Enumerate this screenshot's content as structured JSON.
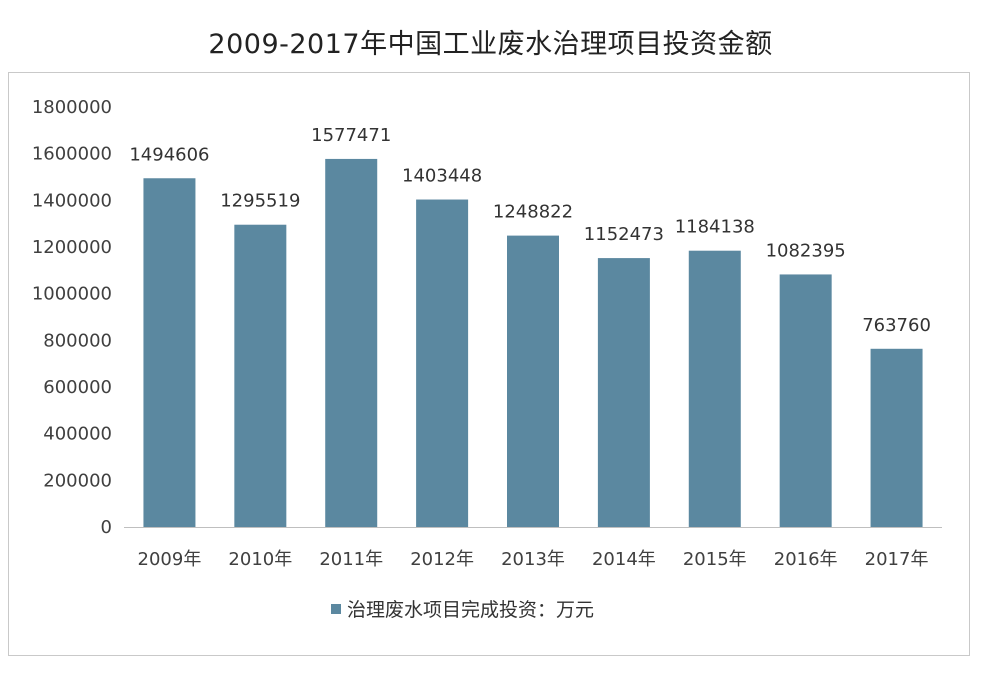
{
  "chart_data": {
    "type": "bar",
    "title": "2009-2017年中国工业废水治理项目投资金额",
    "categories": [
      "2009年",
      "2010年",
      "2011年",
      "2012年",
      "2013年",
      "2014年",
      "2015年",
      "2016年",
      "2017年"
    ],
    "series": [
      {
        "name": "治理废水项目完成投资：万元",
        "values": [
          1494606,
          1295519,
          1577471,
          1403448,
          1248822,
          1152473,
          1184138,
          1082395,
          763760
        ],
        "color": "#5b88a0"
      }
    ],
    "data_labels": [
      "1494606",
      "1295519",
      "1577471",
      "1403448",
      "1248822",
      "1152473",
      "1184138",
      "1082395",
      "763760"
    ],
    "ylim": [
      0,
      1800000
    ],
    "yticks": [
      0,
      200000,
      400000,
      600000,
      800000,
      1000000,
      1200000,
      1400000,
      1600000,
      1800000
    ],
    "ytick_labels": [
      "0",
      "200000",
      "400000",
      "600000",
      "800000",
      "1000000",
      "1200000",
      "1400000",
      "1600000",
      "1800000"
    ],
    "grid": false,
    "legend_position": "bottom"
  }
}
